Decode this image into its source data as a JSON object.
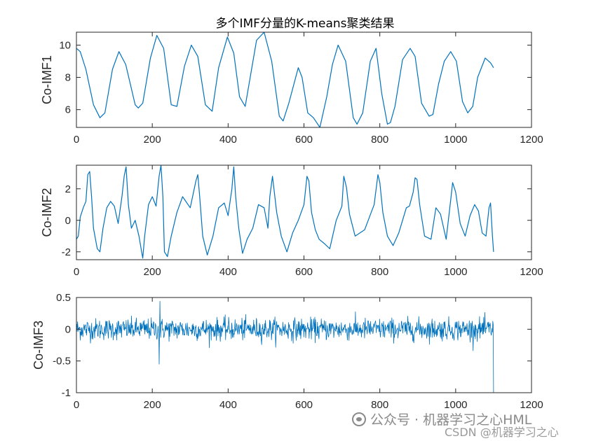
{
  "figure": {
    "title": "多个IMF分量的K-means聚类结果"
  },
  "watermark": {
    "line1": "公众号 · 机器学习之心HML",
    "line2": "CSDN @机器学习之心",
    "icon": "wechat-icon"
  },
  "colors": {
    "line": "#0072BD",
    "axis": "#262626",
    "background": "#ffffff"
  },
  "chart_data": [
    {
      "type": "line",
      "ylabel": "Co-IMF1",
      "xlim": [
        0,
        1200
      ],
      "ylim": [
        4.9,
        10.8
      ],
      "xticks": [
        0,
        200,
        400,
        600,
        800,
        1000,
        1200
      ],
      "yticks": [
        6,
        8,
        10
      ],
      "grid": false,
      "series": [
        {
          "x": [
            0,
            10,
            25,
            45,
            62,
            75,
            95,
            112,
            130,
            155,
            163,
            175,
            195,
            212,
            230,
            250,
            265,
            285,
            303,
            320,
            340,
            358,
            375,
            398,
            415,
            430,
            445,
            475,
            495,
            515,
            535,
            545,
            560,
            585,
            595,
            610,
            625,
            642,
            660,
            675,
            690,
            710,
            730,
            740,
            755,
            775,
            790,
            805,
            820,
            828,
            840,
            860,
            880,
            893,
            910,
            930,
            940,
            955,
            970,
            987,
            1002,
            1018,
            1032,
            1045,
            1058,
            1078,
            1092,
            1100
          ],
          "y": [
            9.8,
            9.6,
            8.5,
            6.3,
            5.5,
            5.8,
            8.5,
            9.6,
            8.8,
            6.3,
            6.1,
            6.4,
            9.2,
            10.6,
            9.8,
            6.3,
            6.2,
            8.7,
            10.0,
            9.3,
            6.3,
            5.9,
            8.6,
            10.5,
            9.5,
            6.8,
            6.2,
            10.3,
            10.8,
            9.0,
            5.6,
            5.3,
            6.4,
            8.6,
            8.0,
            5.8,
            5.5,
            4.9,
            6.8,
            8.8,
            10.0,
            9.0,
            5.5,
            5.1,
            5.8,
            9.0,
            9.8,
            7.0,
            5.1,
            5.2,
            6.2,
            9.1,
            9.8,
            9.3,
            6.4,
            5.6,
            5.7,
            7.6,
            9.0,
            9.6,
            9.0,
            6.5,
            5.8,
            6.2,
            8.0,
            9.2,
            8.9,
            8.6
          ]
        }
      ]
    },
    {
      "type": "line",
      "ylabel": "Co-IMF2",
      "xlim": [
        0,
        1200
      ],
      "ylim": [
        -2.5,
        3.5
      ],
      "xticks": [
        0,
        200,
        400,
        600,
        800,
        1000,
        1200
      ],
      "yticks": [
        -2,
        0,
        2
      ],
      "grid": false,
      "series": [
        {
          "x": [
            0,
            5,
            10,
            18,
            25,
            30,
            35,
            40,
            45,
            55,
            62,
            70,
            80,
            90,
            100,
            110,
            120,
            126,
            131,
            137,
            145,
            155,
            165,
            172,
            175,
            180,
            190,
            200,
            210,
            218,
            223,
            228,
            232,
            240,
            250,
            265,
            280,
            300,
            315,
            320,
            325,
            333,
            345,
            360,
            375,
            390,
            400,
            410,
            415,
            420,
            428,
            438,
            450,
            465,
            480,
            495,
            505,
            510,
            517,
            528,
            540,
            555,
            570,
            585,
            600,
            608,
            613,
            620,
            630,
            640,
            655,
            668,
            685,
            700,
            705,
            712,
            720,
            735,
            760,
            785,
            795,
            800,
            808,
            820,
            835,
            850,
            870,
            878,
            888,
            893,
            898,
            905,
            918,
            935,
            948,
            960,
            975,
            988,
            992,
            1000,
            1012,
            1025,
            1038,
            1050,
            1060,
            1070,
            1080,
            1088,
            1092,
            1097,
            1100
          ],
          "y": [
            -1.2,
            -1.0,
            0.2,
            0.8,
            1.2,
            2.9,
            3.1,
            1.5,
            -0.5,
            -1.8,
            -2.0,
            -0.5,
            0.8,
            1.2,
            0.9,
            -0.2,
            1.5,
            2.8,
            3.4,
            1.0,
            -0.5,
            0.0,
            -1.0,
            -2.0,
            -2.4,
            -1.0,
            1.0,
            1.5,
            0.9,
            2.8,
            3.5,
            1.5,
            -2.0,
            -2.3,
            -1.0,
            0.5,
            1.5,
            0.8,
            2.5,
            2.9,
            1.5,
            -1.0,
            -2.2,
            -1.0,
            0.8,
            1.1,
            0.3,
            2.0,
            3.4,
            1.5,
            -0.5,
            -2.1,
            -1.2,
            -0.5,
            1.0,
            0.8,
            -0.5,
            1.5,
            2.8,
            0.5,
            -1.0,
            -2.0,
            -0.8,
            0.0,
            1.0,
            2.8,
            2.5,
            0.5,
            -0.6,
            -1.2,
            -1.5,
            -1.8,
            0.0,
            0.9,
            2.8,
            2.1,
            0.4,
            -1.0,
            -0.6,
            1.0,
            2.9,
            2.4,
            0.5,
            -1.0,
            -1.6,
            -0.8,
            0.8,
            0.9,
            1.8,
            2.7,
            2.6,
            1.0,
            -1.0,
            -1.2,
            0.8,
            0.4,
            -1.2,
            1.5,
            2.4,
            1.8,
            -0.2,
            -1.0,
            0.3,
            1.0,
            0.6,
            -0.8,
            -1.0,
            0.8,
            1.1,
            -1.0,
            -2.0
          ]
        }
      ]
    },
    {
      "type": "line",
      "ylabel": "Co-IMF3",
      "xlim": [
        0,
        1200
      ],
      "ylim": [
        -1,
        0.5
      ],
      "xticks": [
        0,
        200,
        400,
        600,
        800,
        1000,
        1200
      ],
      "yticks": [
        -1,
        -0.5,
        0,
        0.5
      ],
      "grid": false,
      "noise": {
        "count": 1100,
        "typical_amplitude": 0.12,
        "max": 0.44,
        "min": -0.55,
        "final_value": -1.0,
        "mean": 0
      },
      "series": [
        {
          "x_range": [
            0,
            1100
          ]
        }
      ]
    }
  ]
}
